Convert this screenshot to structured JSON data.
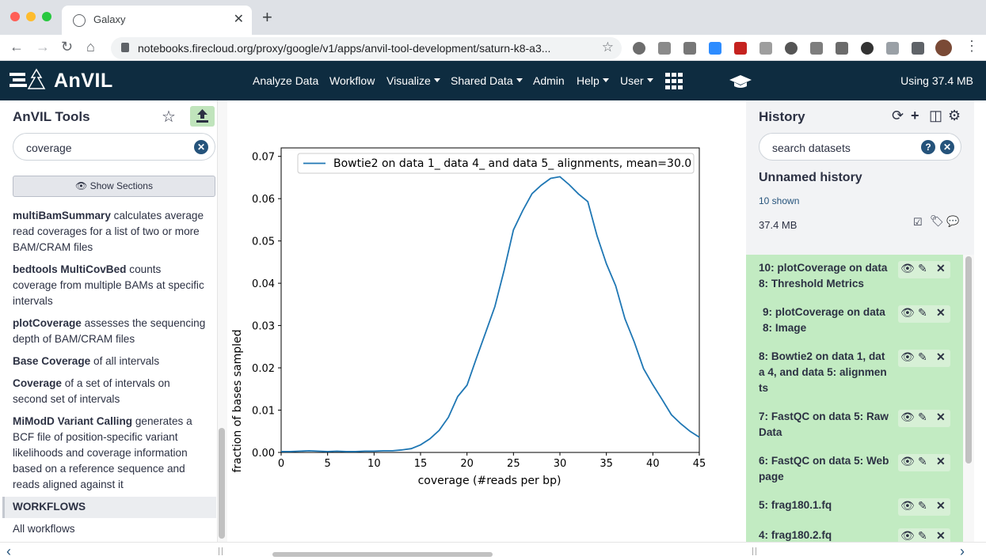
{
  "browser": {
    "tab_title": "Galaxy",
    "url": "notebooks.firecloud.org/proxy/google/v1/apps/anvil-tool-development/saturn-k8-a3..."
  },
  "masthead": {
    "brand": "AnVIL",
    "nav": [
      "Analyze Data",
      "Workflow",
      "Visualize",
      "Shared Data",
      "Admin",
      "Help",
      "User"
    ],
    "usage": "Using 37.4 MB"
  },
  "tool_panel": {
    "title": "AnVIL Tools",
    "search_value": "coverage",
    "show_sections": "Show Sections",
    "tools": [
      {
        "name": "multiBamSummary",
        "desc": " calculates average read coverages for a list of two or more BAM/CRAM files"
      },
      {
        "name": "bedtools MultiCovBed",
        "desc": " counts coverage from multiple BAMs at specific intervals"
      },
      {
        "name": "plotCoverage",
        "desc": " assesses the sequencing depth of BAM/CRAM files"
      },
      {
        "name": "Base Coverage",
        "desc": " of all intervals"
      },
      {
        "name": "Coverage",
        "desc": " of a set of intervals on second set of intervals"
      },
      {
        "name": "MiModD Variant Calling",
        "desc": " generates a BCF file of position-specific variant likelihoods and coverage information based on a reference sequence and reads aligned against it"
      }
    ],
    "workflows_header": "WORKFLOWS",
    "all_workflows": "All workflows"
  },
  "history": {
    "title": "History",
    "search_placeholder": "search datasets",
    "name": "Unnamed history",
    "shown": "10 shown",
    "size": "37.4 MB",
    "datasets": [
      "10: plotCoverage on data 8: Threshold Metrics",
      "9: plotCoverage on data 8: Image",
      "8: Bowtie2 on data 1, data 4, and data 5: alignments",
      "7: FastQC on data 5: RawData",
      "6: FastQC on data 5: Webpage",
      "5: frag180.1.fq",
      "4: frag180.2.fq"
    ]
  },
  "chart_data": {
    "type": "line",
    "title": "",
    "xlabel": "coverage (#reads per bp)",
    "ylabel": "fraction of bases sampled",
    "xlim": [
      0,
      45
    ],
    "ylim": [
      0,
      0.072
    ],
    "xticks": [
      "0",
      "5",
      "10",
      "15",
      "20",
      "25",
      "30",
      "35",
      "40",
      "45"
    ],
    "yticks": [
      "0.00",
      "0.01",
      "0.02",
      "0.03",
      "0.04",
      "0.05",
      "0.06",
      "0.07"
    ],
    "legend": "top",
    "series": [
      {
        "name": "Bowtie2 on data 1_ data 4_ and data 5_ alignments, mean=30.0",
        "color": "#1f77b4",
        "x": [
          0,
          1,
          2,
          3,
          4,
          5,
          6,
          7,
          8,
          9,
          10,
          11,
          12,
          13,
          14,
          15,
          16,
          17,
          18,
          19,
          20,
          21,
          22,
          23,
          24,
          25,
          26,
          27,
          28,
          29,
          30,
          31,
          32,
          33,
          34,
          35,
          36,
          37,
          38,
          39,
          40,
          41,
          42,
          43,
          44,
          45
        ],
        "y": [
          0.0002,
          0.0002,
          0.0003,
          0.0004,
          0.0003,
          0.0002,
          0.0003,
          0.0002,
          0.0002,
          0.0003,
          0.0003,
          0.0004,
          0.0004,
          0.0006,
          0.0009,
          0.0018,
          0.0032,
          0.0052,
          0.0083,
          0.0132,
          0.0159,
          0.0222,
          0.0283,
          0.0345,
          0.0431,
          0.0526,
          0.0572,
          0.0612,
          0.0632,
          0.0648,
          0.0652,
          0.0633,
          0.0611,
          0.0593,
          0.0512,
          0.0446,
          0.0394,
          0.0316,
          0.0261,
          0.0198,
          0.016,
          0.0125,
          0.0089,
          0.0068,
          0.005,
          0.0036
        ]
      }
    ]
  }
}
